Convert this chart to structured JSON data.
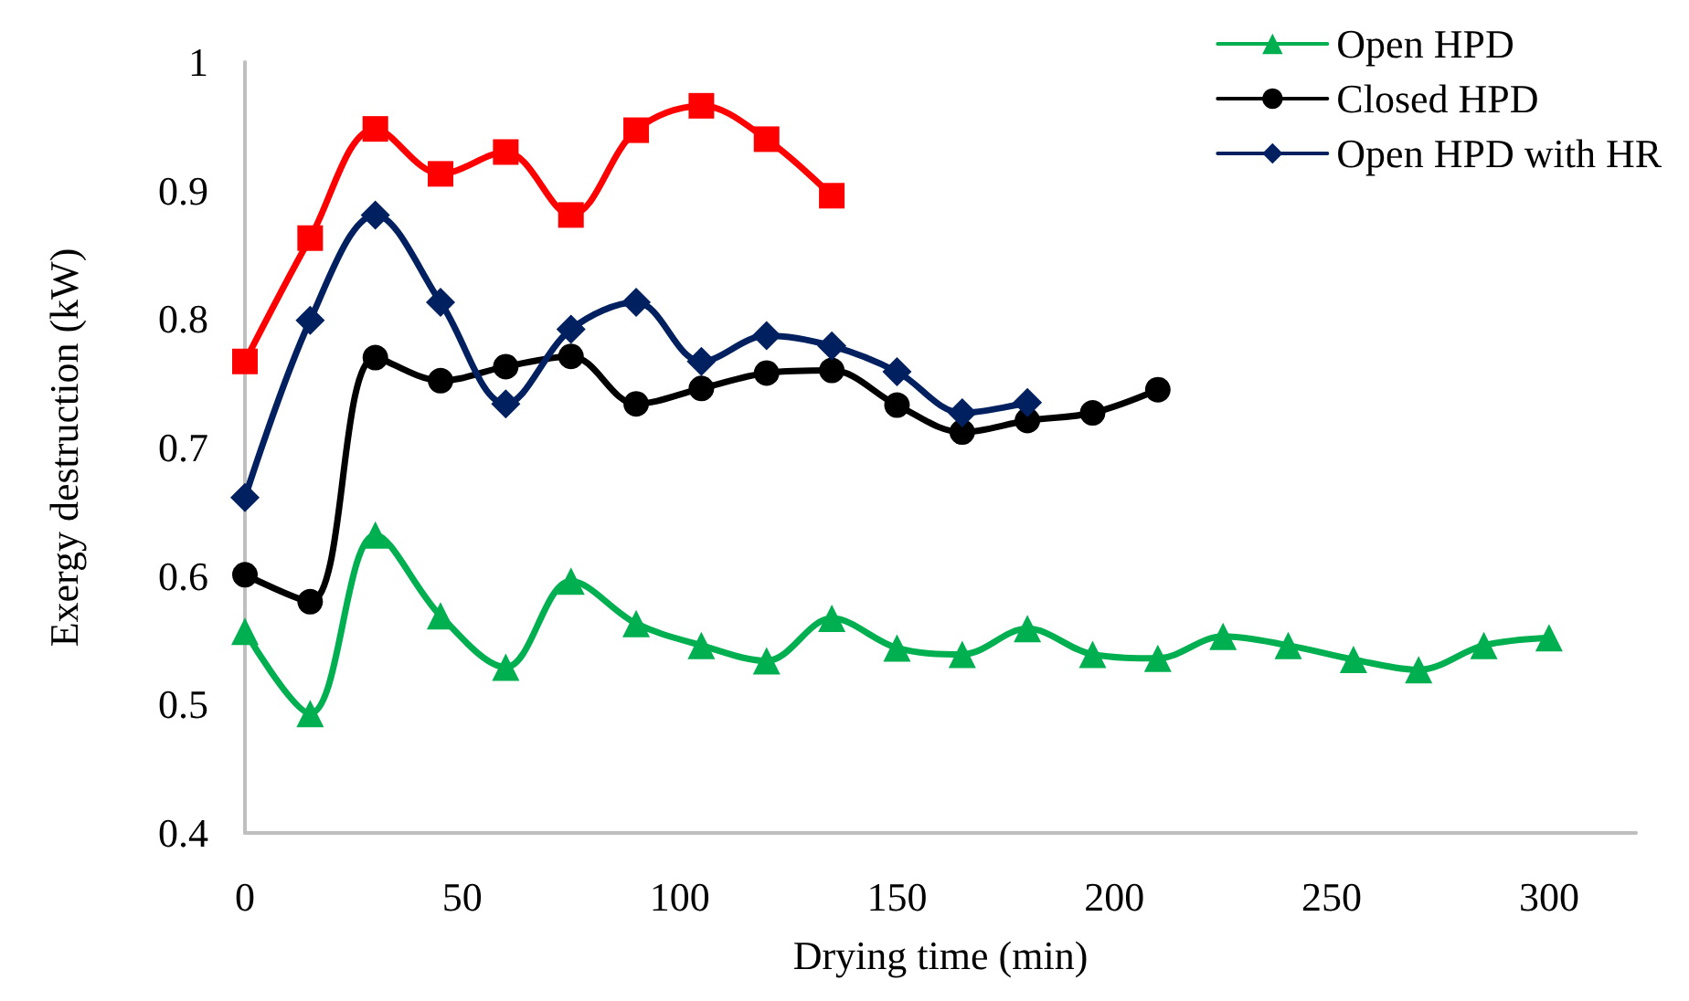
{
  "chart_data": {
    "type": "line",
    "xlabel": "Drying time (min)",
    "ylabel": "Exergy destruction (kW)",
    "xlim": [
      0,
      320
    ],
    "xticks": [
      0,
      50,
      100,
      150,
      200,
      250,
      300
    ],
    "ylim": [
      0.4,
      1
    ],
    "yticks": [
      0.4,
      0.5,
      0.6,
      0.7,
      0.8,
      0.9,
      1
    ],
    "grid": false,
    "legend": "top right",
    "series": [
      {
        "name": "Open HPD",
        "color": "#00b050",
        "marker": "triangle",
        "x": [
          0,
          15,
          30,
          45,
          60,
          75,
          90,
          105,
          120,
          135,
          150,
          165,
          180,
          195,
          210,
          225,
          240,
          255,
          270,
          285,
          300
        ],
        "values": [
          0.557,
          0.493,
          0.632,
          0.569,
          0.529,
          0.596,
          0.563,
          0.546,
          0.534,
          0.567,
          0.544,
          0.539,
          0.559,
          0.539,
          0.536,
          0.553,
          0.546,
          0.535,
          0.527,
          0.546,
          0.552
        ]
      },
      {
        "name": "Closed HPD",
        "color": "#000000",
        "marker": "circle",
        "x": [
          0,
          15,
          30,
          45,
          60,
          75,
          90,
          105,
          120,
          135,
          150,
          165,
          180,
          195,
          210
        ],
        "values": [
          0.601,
          0.58,
          0.77,
          0.752,
          0.763,
          0.771,
          0.734,
          0.746,
          0.758,
          0.76,
          0.733,
          0.712,
          0.721,
          0.727,
          0.745
        ]
      },
      {
        "name": "Open HPD with HR",
        "color": "#002060",
        "marker": "diamond",
        "x": [
          0,
          15,
          30,
          45,
          60,
          75,
          90,
          105,
          120,
          135,
          150,
          165,
          180
        ],
        "values": [
          0.661,
          0.799,
          0.881,
          0.813,
          0.734,
          0.792,
          0.813,
          0.767,
          0.787,
          0.779,
          0.759,
          0.727,
          0.735
        ]
      },
      {
        "color": "#ff0000",
        "marker": "square",
        "x": [
          0,
          15,
          30,
          45,
          60,
          75,
          90,
          105,
          120,
          135
        ],
        "values": [
          0.767,
          0.863,
          0.948,
          0.913,
          0.93,
          0.881,
          0.947,
          0.966,
          0.94,
          0.896
        ]
      }
    ]
  }
}
